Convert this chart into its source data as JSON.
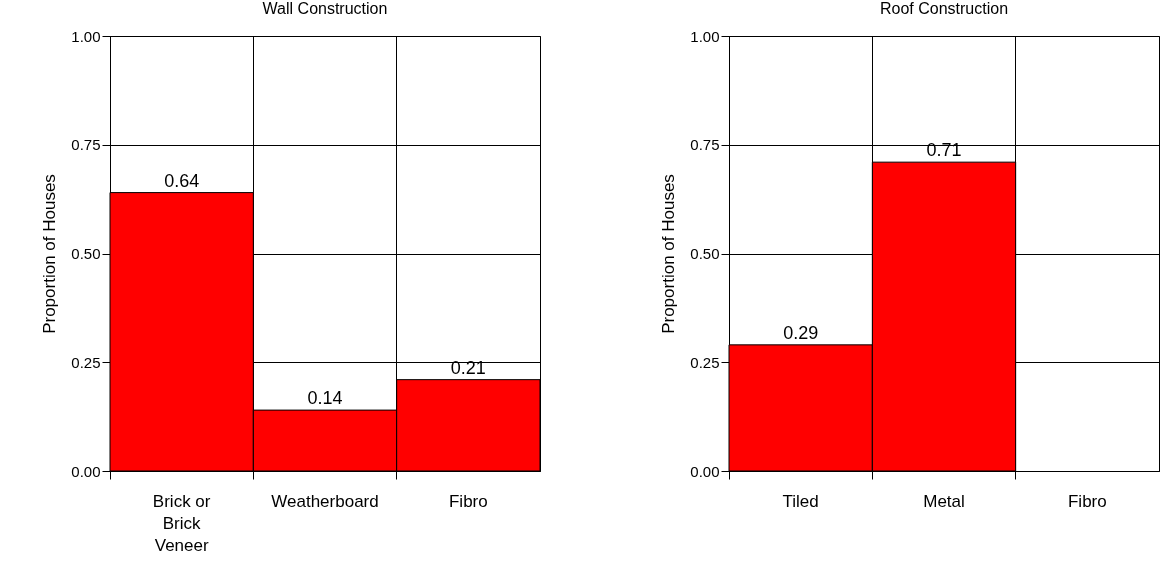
{
  "chart_data": [
    {
      "type": "bar",
      "title": "Wall Construction",
      "ylabel": "Proportion of Houses",
      "categories": [
        "Brick or Brick Veneer",
        "Weatherboard",
        "Fibro"
      ],
      "values": [
        0.64,
        0.14,
        0.21
      ],
      "color": "#ff0000",
      "ylim": [
        0,
        1
      ],
      "yticks": [
        {
          "value": 0,
          "label": "0.00"
        },
        {
          "value": 0.25,
          "label": "0.25"
        },
        {
          "value": 0.5,
          "label": "0.50"
        },
        {
          "value": 0.75,
          "label": "0.75"
        },
        {
          "value": 1,
          "label": "1.00"
        }
      ],
      "grid": true,
      "data_labels": true
    },
    {
      "type": "bar",
      "title": "Roof Construction",
      "ylabel": "Proportion of Houses",
      "categories": [
        "Tiled",
        "Metal",
        "Fibro"
      ],
      "values": [
        0.29,
        0.71,
        null
      ],
      "value_labels": [
        "0.29",
        "0.71",
        null
      ],
      "color": "#ff0000",
      "ylim": [
        0,
        1
      ],
      "yticks": [
        {
          "value": 0,
          "label": "0.00"
        },
        {
          "value": 0.25,
          "label": "0.25"
        },
        {
          "value": 0.5,
          "label": "0.50"
        },
        {
          "value": 0.75,
          "label": "0.75"
        },
        {
          "value": 1,
          "label": "1.00"
        }
      ],
      "grid": true
    }
  ]
}
